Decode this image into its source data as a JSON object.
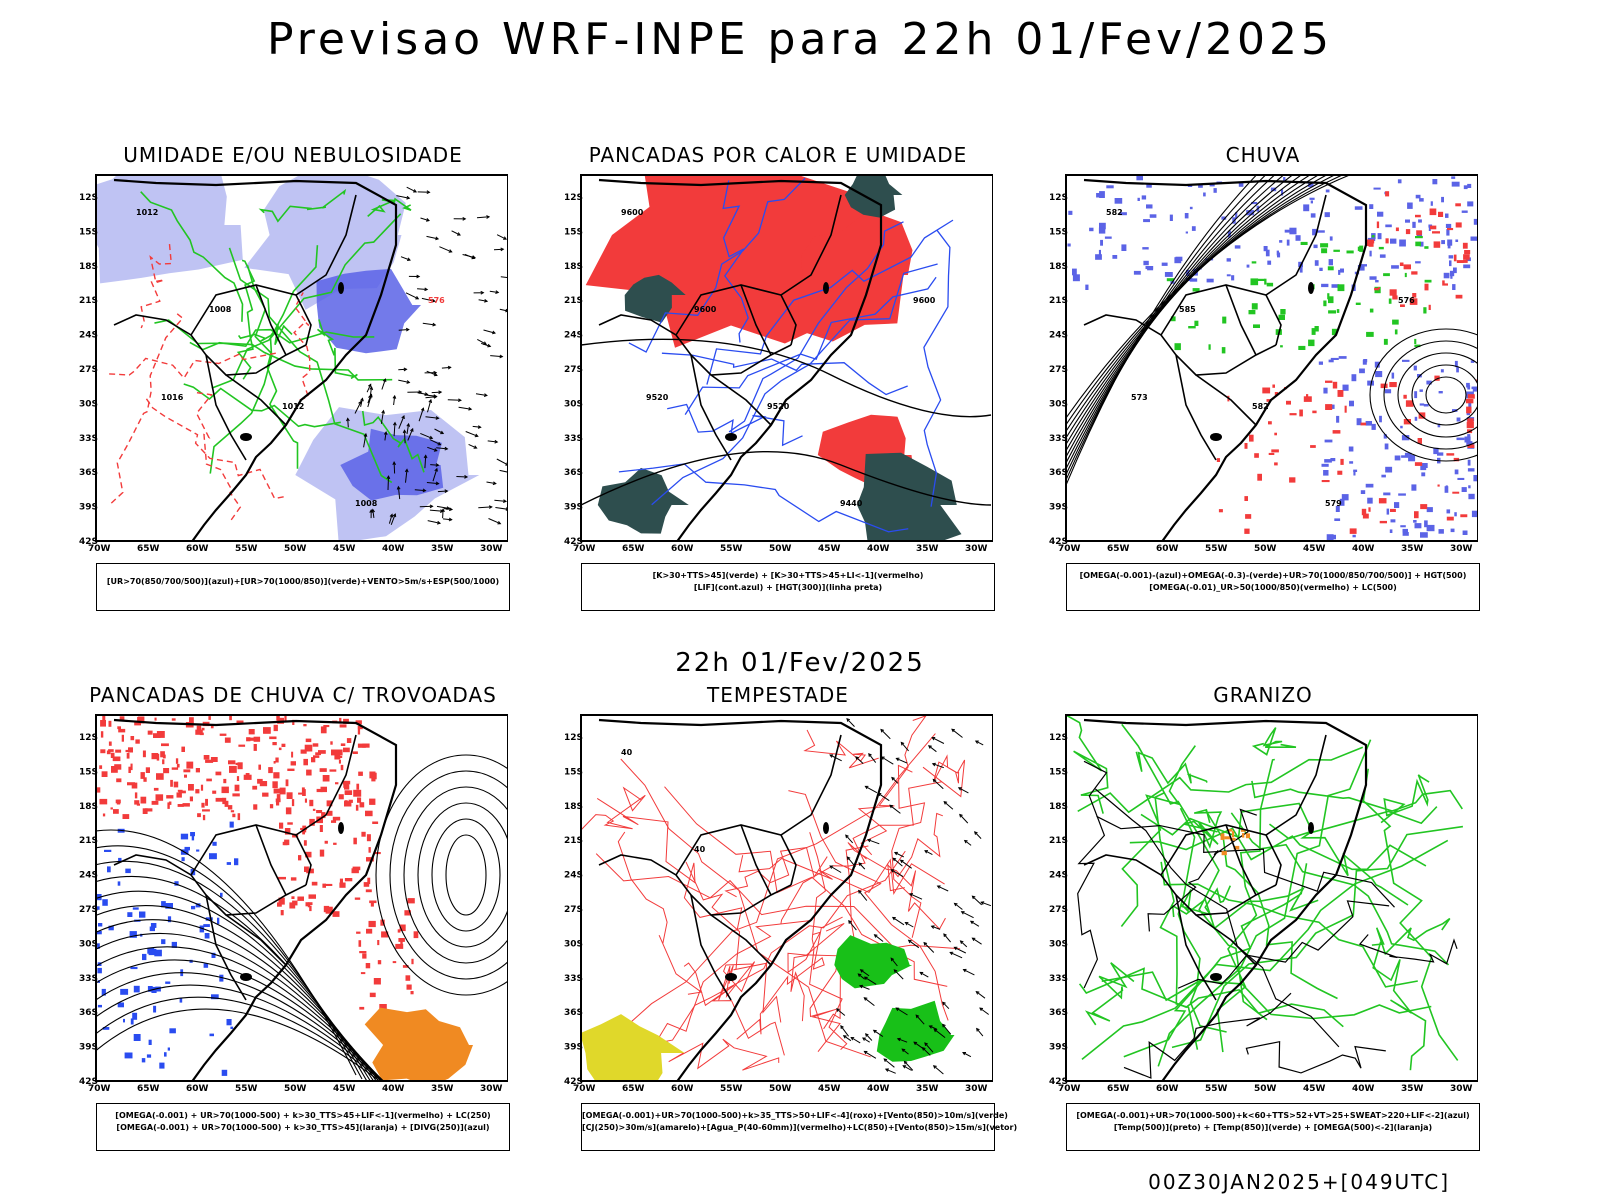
{
  "header": {
    "title": "Previsao WRF-INPE  para 22h 01/Fev/2025"
  },
  "subheader": {
    "date": "22h 01/Fev/2025"
  },
  "footer": {
    "run": "00Z30JAN2025+[049UTC]"
  },
  "axes": {
    "lat_labels": [
      "12S",
      "15S",
      "18S",
      "21S",
      "24S",
      "27S",
      "30S",
      "33S",
      "36S",
      "39S",
      "42S"
    ],
    "lon_labels": [
      "70W",
      "65W",
      "60W",
      "55W",
      "50W",
      "45W",
      "40W",
      "35W",
      "30W"
    ]
  },
  "panels": [
    {
      "title": "UMIDADE E/OU NEBULOSIDADE",
      "legend": [
        "[UR>70(850/700/500)](azul)+[UR>70(1000/850)](verde)+VENTO>5m/s+ESP(500/1000)"
      ],
      "contour_labels": [
        "1012",
        "1008",
        "1012",
        "1008",
        "576",
        "1016"
      ]
    },
    {
      "title": "PANCADAS POR CALOR E UMIDADE",
      "legend": [
        "[K>30+TTS>45](verde) + [K>30+TTS>45+LI<-1](vermelho)",
        "[LIF](cont.azul) + [HGT(300)](linha preta)"
      ],
      "contour_labels": [
        "9600",
        "9600",
        "9520",
        "9440",
        "9600",
        "9520"
      ]
    },
    {
      "title": "CHUVA",
      "legend": [
        "[OMEGA(-0.001)-(azul)+OMEGA(-0.3)-(verde)+UR>70(1000/850/700/500)] + HGT(500)",
        "[OMEGA(-0.01)_UR>50(1000/850)(vermelho) + LC(500)"
      ],
      "contour_labels": [
        "582",
        "585",
        "582",
        "579",
        "576",
        "573"
      ]
    },
    {
      "title": "PANCADAS DE CHUVA C/ TROVOADAS",
      "legend": [
        "[OMEGA(-0.001) + UR>70(1000-500) + k>30_TTS>45+LIF<-1](vermelho) + LC(250)",
        "[OMEGA(-0.001) + UR>70(1000-500) + k>30_TTS>45](laranja) + [DIVG(250)](azul)"
      ],
      "contour_labels": []
    },
    {
      "title": "TEMPESTADE",
      "legend": [
        "[OMEGA(-0.001)+UR>70(1000-500)+k>35_TTS>50+LIF<-4](roxo)+[Vento(850)>10m/s](verde)",
        "[CJ(250)>30m/s](amarelo)+[Agua_P(40-60mm)](vermelho)+LC(850)+[Vento(850)>15m/s](vetor)"
      ],
      "contour_labels": [
        "40",
        "40"
      ]
    },
    {
      "title": "GRANIZO",
      "legend": [
        "[OMEGA(-0.001)+UR>70(1000-500)+k<60+TTS>52+VT>25+SWEAT>220+LIF<-2](azul)",
        "[Temp(500)](preto) + [Temp(850)](verde) + [OMEGA(500)<-2](laranja)"
      ],
      "contour_labels": []
    }
  ],
  "colors": {
    "humid_blue": "#5b63e6",
    "humid_blue_light": "#b8bcf2",
    "humid_green": "#22c522",
    "red": "#f23b3b",
    "dark_teal": "#2e4e4e",
    "blue_contour": "#2a4cf0",
    "orange": "#f08a22",
    "yellow": "#e0d82a",
    "green_fill": "#18c018"
  }
}
